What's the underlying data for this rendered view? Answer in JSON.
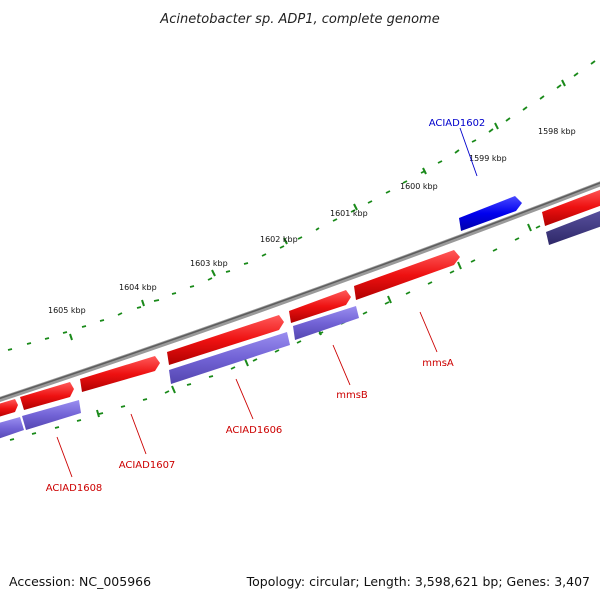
{
  "title": "Acinetobacter sp. ADP1, complete genome",
  "footer": {
    "accession": "Accession: NC_005966",
    "summary": "Topology: circular; Length: 3,598,621 bp; Genes: 3,407"
  },
  "scale_labels": [
    "1598 kbp",
    "1599 kbp",
    "1600 kbp",
    "1601 kbp",
    "1602 kbp",
    "1603 kbp",
    "1604 kbp",
    "1605 kbp"
  ],
  "genes": [
    {
      "name": "ACIAD1602",
      "color": "#0000cc"
    },
    {
      "name": "mmsA",
      "color": "#cc0000"
    },
    {
      "name": "mmsB",
      "color": "#cc0000"
    },
    {
      "name": "ACIAD1606",
      "color": "#cc0000"
    },
    {
      "name": "ACIAD1607",
      "color": "#cc0000"
    },
    {
      "name": "ACIAD1608",
      "color": "#cc0000"
    }
  ],
  "colors": {
    "backbone": "#7a7a7a",
    "tick": "#1a8a1a",
    "forward_gene": "#ee1111",
    "reverse_gene": "#6f5fd0",
    "reverse_gene_dark": "#3f3880",
    "highlight_gene": "#0000ee"
  }
}
